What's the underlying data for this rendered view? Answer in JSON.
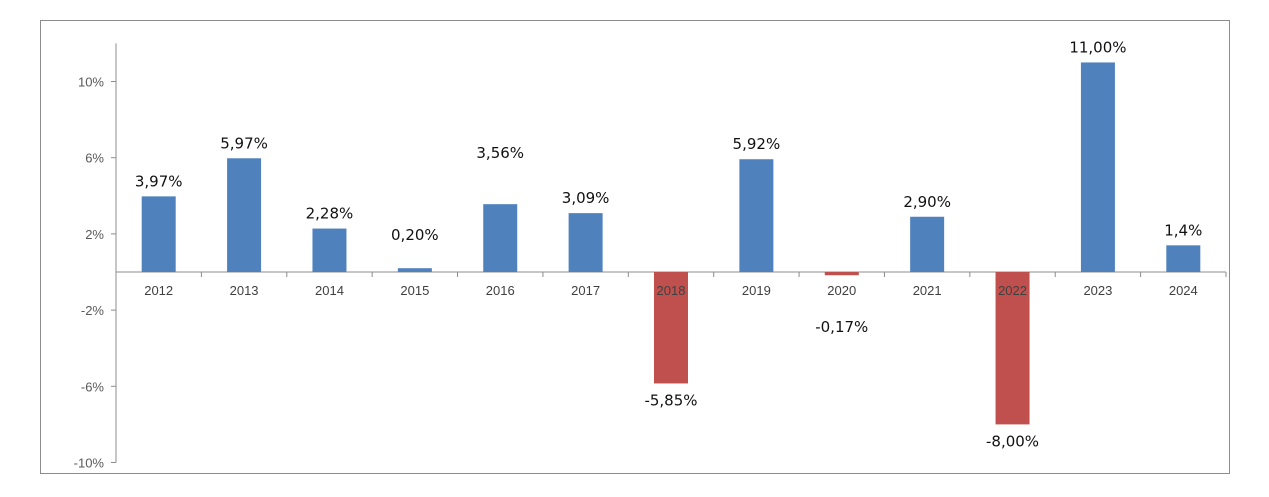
{
  "chart_data": {
    "type": "bar",
    "title": "",
    "xlabel": "",
    "ylabel": "",
    "categories": [
      "2012",
      "2013",
      "2014",
      "2015",
      "2016",
      "2017",
      "2018",
      "2019",
      "2020",
      "2021",
      "2022",
      "2023",
      "2024"
    ],
    "values": [
      3.97,
      5.97,
      2.28,
      0.2,
      3.56,
      3.09,
      -5.85,
      5.92,
      -0.17,
      2.9,
      -8.0,
      11.0,
      1.4
    ],
    "data_labels": [
      "3,97%",
      "5,97%",
      "2,28%",
      "0,20%",
      "3,56%",
      "3,09%",
      "-5,85%",
      "5,92%",
      "-0,17%",
      "2,90%",
      "-8,00%",
      "11,00%",
      "1,4%"
    ],
    "ylim": [
      -10,
      12
    ],
    "y_ticks": [
      10,
      6,
      2,
      -2,
      -6,
      -10
    ],
    "y_tick_labels": [
      "10%",
      "6%",
      "2%",
      "-2%",
      "-6%",
      "-10%"
    ],
    "grid": false,
    "legend": "none",
    "colors": {
      "positive": "#4f81bd",
      "negative": "#c0504d",
      "axis": "#8c8c8c"
    }
  }
}
